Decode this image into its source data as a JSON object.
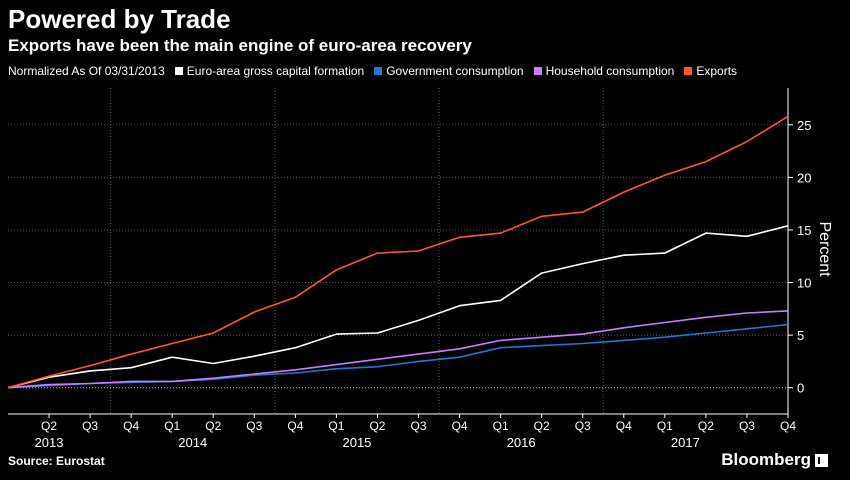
{
  "header": {
    "title": "Powered by Trade",
    "subtitle": "Exports have been the main engine of euro-area recovery"
  },
  "legend": {
    "note": "Normalized As Of 03/31/2013",
    "items": [
      {
        "label": "Euro-area gross capital formation",
        "color": "#ffffff"
      },
      {
        "label": "Government consumption",
        "color": "#1f78d6"
      },
      {
        "label": "Household consumption",
        "color": "#c77dff"
      },
      {
        "label": "Exports",
        "color": "#ff5a1f"
      }
    ]
  },
  "footer": {
    "source": "Source: Eurostat",
    "brand": "Bloomberg"
  },
  "chart_data": {
    "type": "line",
    "title": "Powered by Trade",
    "subtitle": "Exports have been the main engine of euro-area recovery",
    "ylabel": "Percent",
    "xlabel": "",
    "ylim": [
      -2.5,
      28.5
    ],
    "yticks": [
      0,
      5,
      10,
      15,
      20,
      25
    ],
    "quarters": [
      "Q2",
      "Q3",
      "Q4",
      "Q1",
      "Q2",
      "Q3",
      "Q4",
      "Q1",
      "Q2",
      "Q3",
      "Q4",
      "Q1",
      "Q2",
      "Q3",
      "Q4",
      "Q1",
      "Q2",
      "Q3",
      "Q4"
    ],
    "years": [
      {
        "label": "2013",
        "quarter_index": 1
      },
      {
        "label": "2014",
        "quarter_index": 4.5
      },
      {
        "label": "2015",
        "quarter_index": 8.5
      },
      {
        "label": "2016",
        "quarter_index": 12.5
      },
      {
        "label": "2017",
        "quarter_index": 16.5
      }
    ],
    "year_dividers": [
      2.5,
      6.5,
      10.5,
      14.5
    ],
    "x": [
      "2013-03-31",
      "2013-06-30",
      "2013-09-30",
      "2013-12-31",
      "2014-03-31",
      "2014-06-30",
      "2014-09-30",
      "2014-12-31",
      "2015-03-31",
      "2015-06-30",
      "2015-09-30",
      "2015-12-31",
      "2016-03-31",
      "2016-06-30",
      "2016-09-30",
      "2016-12-31",
      "2017-03-31",
      "2017-06-30",
      "2017-09-30",
      "2017-12-31"
    ],
    "series": [
      {
        "name": "Euro-area gross capital formation",
        "color": "#ffffff",
        "values": [
          0,
          1.0,
          1.6,
          1.9,
          2.9,
          2.3,
          3.0,
          3.8,
          5.1,
          5.2,
          6.4,
          7.8,
          8.3,
          10.9,
          11.8,
          12.6,
          12.8,
          14.7,
          14.4,
          15.4
        ]
      },
      {
        "name": "Government consumption",
        "color": "#1f78d6",
        "values": [
          0,
          0.2,
          0.4,
          0.5,
          0.6,
          0.8,
          1.2,
          1.4,
          1.8,
          2.0,
          2.5,
          2.9,
          3.8,
          4.0,
          4.2,
          4.5,
          4.8,
          5.2,
          5.6,
          6.0
        ]
      },
      {
        "name": "Household consumption",
        "color": "#c77dff",
        "values": [
          0,
          0.3,
          0.4,
          0.6,
          0.6,
          0.9,
          1.3,
          1.7,
          2.2,
          2.7,
          3.2,
          3.7,
          4.5,
          4.8,
          5.1,
          5.7,
          6.2,
          6.7,
          7.1,
          7.3
        ]
      },
      {
        "name": "Exports",
        "color": "#ff5a1f",
        "values": [
          0,
          1.1,
          2.1,
          3.2,
          4.2,
          5.2,
          7.2,
          8.6,
          11.2,
          12.8,
          13.0,
          14.3,
          14.7,
          16.3,
          16.7,
          18.6,
          20.2,
          21.5,
          23.4,
          25.8
        ]
      }
    ]
  }
}
